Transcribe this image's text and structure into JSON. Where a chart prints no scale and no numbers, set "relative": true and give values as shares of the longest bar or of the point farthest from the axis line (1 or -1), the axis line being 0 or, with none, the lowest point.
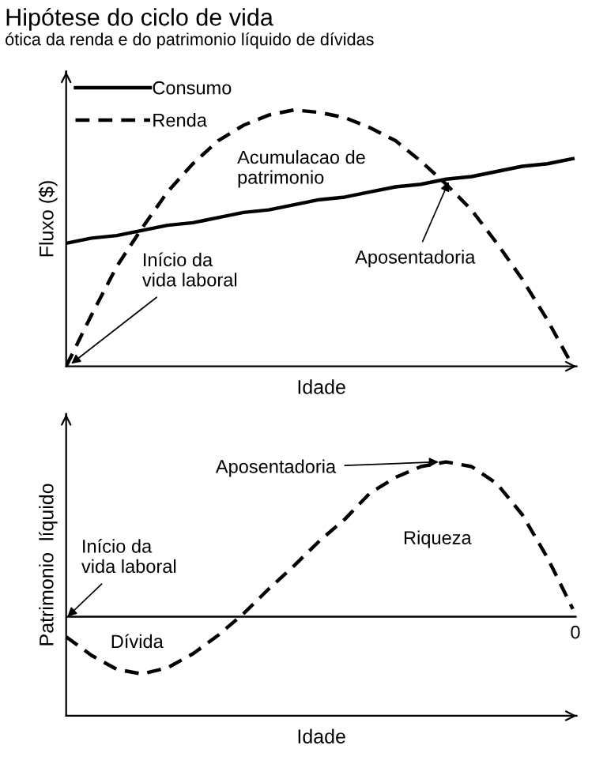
{
  "chart_data": [
    {
      "type": "line",
      "title": "Hipótese do ciclo de vida",
      "subtitle": "ótica da renda e do patrimonio líquido de dívidas",
      "xlabel": "Idade",
      "ylabel": "Fluxo ($)",
      "relative": true,
      "tick_labels": false,
      "legend": "top left",
      "grid": false,
      "marker": "none",
      "categories": [
        null,
        null,
        null,
        null,
        null,
        null,
        null,
        null,
        null,
        null,
        null,
        null,
        null,
        null,
        null,
        null,
        null,
        null,
        null,
        null,
        null
      ],
      "series": [
        {
          "name": "Consumo",
          "color": "#000000",
          "line_style": "solid",
          "values": [
            0.48,
            0.5,
            0.51,
            0.53,
            0.55,
            0.56,
            0.58,
            0.6,
            0.61,
            0.63,
            0.65,
            0.66,
            0.68,
            0.7,
            0.71,
            0.73,
            0.74,
            0.76,
            0.78,
            0.79,
            0.81
          ]
        },
        {
          "name": "Renda",
          "color": "#000000",
          "line_style": "dashed",
          "values": [
            0,
            0.2,
            0.39,
            0.54,
            0.68,
            0.79,
            0.88,
            0.94,
            0.98,
            1.0,
            0.99,
            0.97,
            0.93,
            0.88,
            0.8,
            0.71,
            0.61,
            0.48,
            0.34,
            0.18,
            0
          ]
        }
      ],
      "annotations": [
        "Acumulacao de\npatrimonio",
        "Aposentadoria",
        "Início da\nvida laboral"
      ]
    },
    {
      "type": "line",
      "xlabel": "Idade",
      "ylabel": "Patrimonio  líquido",
      "relative": true,
      "tick_labels": false,
      "grid": false,
      "marker": "none",
      "categories": [
        null,
        null,
        null,
        null,
        null,
        null,
        null,
        null,
        null,
        null,
        null,
        null,
        null,
        null,
        null,
        null,
        null,
        null,
        null,
        null,
        null
      ],
      "series": [
        {
          "color": "#000000",
          "line_style": "dashed",
          "values": [
            -0.13,
            -0.25,
            -0.34,
            -0.37,
            -0.33,
            -0.24,
            -0.12,
            0.02,
            0.18,
            0.33,
            0.49,
            0.63,
            0.8,
            0.9,
            0.97,
            1.0,
            0.97,
            0.86,
            0.66,
            0.38,
            0.05
          ]
        }
      ],
      "annotations": [
        "Aposentadoria",
        "Riqueza",
        "Início da\nvida laboral",
        "Dívida",
        "0"
      ]
    }
  ]
}
